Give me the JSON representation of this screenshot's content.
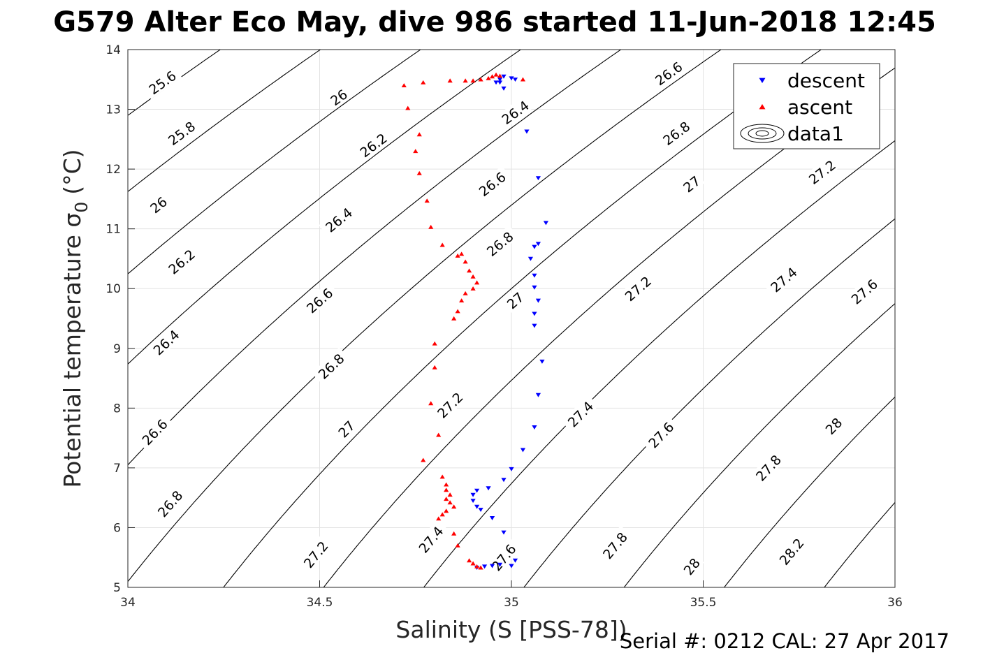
{
  "chart_data": {
    "type": "scatter",
    "title": "G579 Alter Eco May, dive 986 started 11-Jun-2018 12:45",
    "xlabel": "Salinity (S [PSS-78])",
    "ylabel_main": "Potential temperature σ",
    "ylabel_sub": "0",
    "ylabel_unit": "(°C)",
    "xlim": [
      34,
      36
    ],
    "ylim": [
      5,
      14
    ],
    "x_ticks": [
      "34",
      "34.5",
      "35",
      "35.5",
      "36"
    ],
    "y_ticks": [
      "5",
      "6",
      "7",
      "8",
      "9",
      "10",
      "11",
      "12",
      "13",
      "14"
    ],
    "grid": true,
    "legend_position": "top-right",
    "contour_levels": [
      25.6,
      25.8,
      26,
      26.2,
      26.4,
      26.6,
      26.8,
      27,
      27.2,
      27.4,
      27.6,
      27.8,
      28,
      28.2
    ],
    "contour_labels": [
      {
        "text": "25.6",
        "x": 34.09,
        "y": 13.45
      },
      {
        "text": "25.8",
        "x": 34.14,
        "y": 12.6
      },
      {
        "text": "26",
        "x": 34.08,
        "y": 11.4
      },
      {
        "text": "26.2",
        "x": 34.14,
        "y": 10.45
      },
      {
        "text": "26.4",
        "x": 34.1,
        "y": 9.1
      },
      {
        "text": "26.6",
        "x": 34.07,
        "y": 7.6
      },
      {
        "text": "26.8",
        "x": 34.11,
        "y": 6.4
      },
      {
        "text": "26",
        "x": 34.55,
        "y": 13.2
      },
      {
        "text": "26.2",
        "x": 34.64,
        "y": 12.4
      },
      {
        "text": "26.4",
        "x": 34.55,
        "y": 11.15
      },
      {
        "text": "26.6",
        "x": 34.5,
        "y": 9.8
      },
      {
        "text": "26.8",
        "x": 34.53,
        "y": 8.7
      },
      {
        "text": "27",
        "x": 34.57,
        "y": 7.65
      },
      {
        "text": "27.2",
        "x": 34.49,
        "y": 5.55
      },
      {
        "text": "26.4",
        "x": 35.01,
        "y": 12.95
      },
      {
        "text": "26.6",
        "x": 34.95,
        "y": 11.75
      },
      {
        "text": "26.8",
        "x": 34.97,
        "y": 10.75
      },
      {
        "text": "27",
        "x": 35.01,
        "y": 9.8
      },
      {
        "text": "27.2",
        "x": 34.84,
        "y": 8.05
      },
      {
        "text": "27.4",
        "x": 34.79,
        "y": 5.8
      },
      {
        "text": "27.6",
        "x": 34.98,
        "y": 5.5
      },
      {
        "text": "26.6",
        "x": 35.41,
        "y": 13.6
      },
      {
        "text": "26.8",
        "x": 35.43,
        "y": 12.6
      },
      {
        "text": "27",
        "x": 35.47,
        "y": 11.75
      },
      {
        "text": "27.2",
        "x": 35.81,
        "y": 11.95
      },
      {
        "text": "27.2",
        "x": 35.33,
        "y": 10.0
      },
      {
        "text": "27.4",
        "x": 35.71,
        "y": 10.15
      },
      {
        "text": "27.6",
        "x": 35.92,
        "y": 9.95
      },
      {
        "text": "27.4",
        "x": 35.18,
        "y": 7.9
      },
      {
        "text": "27.6",
        "x": 35.39,
        "y": 7.55
      },
      {
        "text": "27.8",
        "x": 35.67,
        "y": 7.0
      },
      {
        "text": "28",
        "x": 35.84,
        "y": 7.7
      },
      {
        "text": "27.8",
        "x": 35.27,
        "y": 5.7
      },
      {
        "text": "28",
        "x": 35.47,
        "y": 5.35
      },
      {
        "text": "28.2",
        "x": 35.73,
        "y": 5.6
      }
    ],
    "series": [
      {
        "name": "descent",
        "color": "#0000ff",
        "marker": "triangle-down",
        "x": [
          34.98,
          34.97,
          34.96,
          35.0,
          35.01,
          34.98,
          34.97,
          35.04,
          35.07,
          35.09,
          35.06,
          35.07,
          35.05,
          35.06,
          35.06,
          35.07,
          35.06,
          35.06,
          35.08,
          35.07,
          35.06,
          35.03,
          35.0,
          34.98,
          34.94,
          34.91,
          34.9,
          34.9,
          34.91,
          34.92,
          34.95,
          34.98,
          35.01,
          35.0,
          34.97,
          34.95,
          34.93,
          34.91
        ],
        "y": [
          13.55,
          13.5,
          13.45,
          13.52,
          13.5,
          13.35,
          13.45,
          12.63,
          11.85,
          11.1,
          10.7,
          10.75,
          10.5,
          10.22,
          10.02,
          9.8,
          9.58,
          9.38,
          8.78,
          8.22,
          7.68,
          7.3,
          6.98,
          6.8,
          6.66,
          6.62,
          6.55,
          6.45,
          6.35,
          6.3,
          6.16,
          5.92,
          5.45,
          5.36,
          5.38,
          5.36,
          5.35,
          5.33
        ]
      },
      {
        "name": "ascent",
        "color": "#ff0000",
        "marker": "triangle-up",
        "x": [
          34.72,
          34.73,
          34.77,
          34.84,
          34.88,
          34.9,
          34.92,
          34.94,
          34.95,
          34.96,
          34.97,
          35.03,
          34.76,
          34.75,
          34.76,
          34.78,
          34.79,
          34.82,
          34.86,
          34.87,
          34.88,
          34.89,
          34.9,
          34.91,
          34.9,
          34.88,
          34.87,
          34.86,
          34.85,
          34.8,
          34.8,
          34.79,
          34.81,
          34.77,
          34.82,
          34.83,
          34.83,
          34.84,
          34.83,
          34.84,
          34.85,
          34.83,
          34.82,
          34.81,
          34.85,
          34.86,
          34.89,
          34.9,
          34.91,
          34.92
        ],
        "y": [
          13.4,
          13.02,
          13.45,
          13.48,
          13.48,
          13.48,
          13.5,
          13.52,
          13.55,
          13.58,
          13.56,
          13.5,
          12.58,
          12.3,
          11.93,
          11.47,
          11.03,
          10.73,
          10.55,
          10.58,
          10.45,
          10.3,
          10.2,
          10.1,
          10.0,
          9.92,
          9.8,
          9.62,
          9.5,
          9.08,
          8.68,
          8.08,
          7.55,
          7.13,
          6.85,
          6.72,
          6.63,
          6.55,
          6.48,
          6.42,
          6.35,
          6.28,
          6.22,
          6.15,
          5.9,
          5.7,
          5.45,
          5.4,
          5.35,
          5.33
        ]
      }
    ],
    "legend": [
      {
        "label": "descent",
        "marker": "triangle-down",
        "color": "#0000ff"
      },
      {
        "label": "ascent",
        "marker": "triangle-up",
        "color": "#ff0000"
      },
      {
        "label": "data1",
        "marker": "contour",
        "color": "#000000"
      }
    ],
    "footer": "Serial #: 0212  CAL: 27 Apr 2017"
  }
}
